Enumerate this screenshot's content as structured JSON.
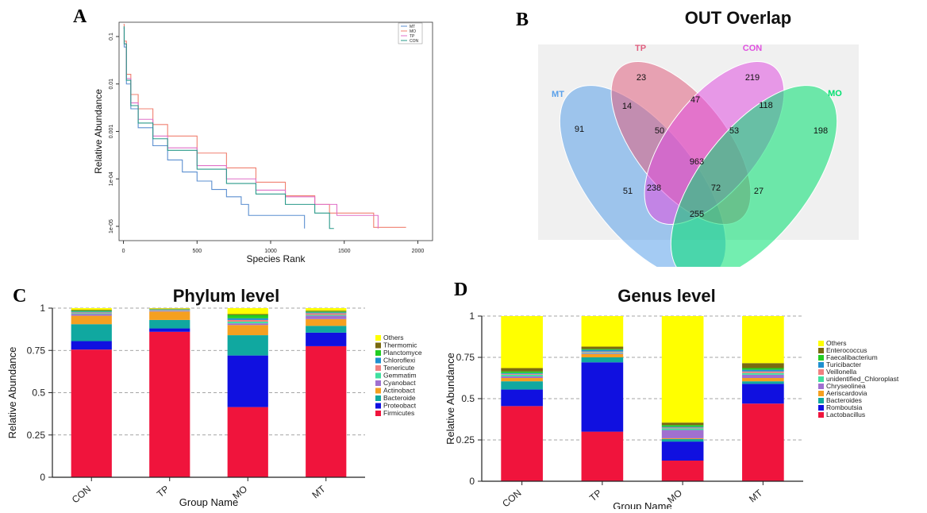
{
  "panel_labels": {
    "a": "A",
    "b": "B",
    "c": "C",
    "d": "D"
  },
  "colors": {
    "MT_curve": "#5b8fd0",
    "MO_curve": "#f08070",
    "TP_curve": "#e070c8",
    "CON_curve": "#2a9a8a",
    "Others": "#ffff00",
    "Thermomicrobia": "#7a6a10",
    "Planctomycetes": "#22cc22",
    "Chloroflexi": "#1e90d0",
    "Tenericutes": "#f08080",
    "Gemmatimonadetes": "#40e0a0",
    "Cyanobacteria": "#a070d0",
    "Actinobacteria": "#f5a020",
    "Bacteroidetes": "#10a8a0",
    "Proteobacteria": "#1010e0",
    "Firmicutes": "#f0143c",
    "Enterococcus": "#7a6a10",
    "Faecalibacterium": "#22cc22",
    "Turicibacter": "#1e90d0",
    "Veillonella": "#f08080",
    "unidentified_Chloroplast": "#40e0a0",
    "Chryseolinea": "#a070d0",
    "Aeriscardovia": "#f5a020",
    "Bacteroides": "#10a8a0",
    "Romboutsia": "#1010e0",
    "Lactobacillus": "#f0143c"
  },
  "chart_data": [
    {
      "id": "A",
      "type": "line",
      "title": "",
      "xlabel": "Species Rank",
      "ylabel": "Relative Abundance",
      "yscale": "log",
      "xlim": [
        -30,
        2100
      ],
      "ylim": [
        5e-06,
        0.2
      ],
      "xticks": [
        0,
        500,
        1000,
        1500,
        2000
      ],
      "xtick_labels": [
        "0",
        "500",
        "1000",
        "1500",
        "2000"
      ],
      "yticks": [
        0.1,
        0.01,
        0.001,
        0.0001,
        1e-05
      ],
      "ytick_labels": [
        "0.1",
        "0.01",
        "0.001",
        "1e-04",
        "1e-05"
      ],
      "legend_position": "top-right",
      "series": [
        {
          "name": "MT",
          "x": [
            1,
            5,
            20,
            50,
            100,
            200,
            300,
            400,
            500,
            600,
            700,
            800,
            850,
            1000,
            1230
          ],
          "y": [
            0.15,
            0.06,
            0.01,
            0.003,
            0.0012,
            0.0005,
            0.00025,
            0.00014,
            9e-05,
            6e-05,
            4.2e-05,
            2.9e-05,
            1.7e-05,
            1.7e-05,
            9e-06
          ]
        },
        {
          "name": "MO",
          "x": [
            1,
            5,
            20,
            50,
            100,
            200,
            300,
            500,
            700,
            900,
            1100,
            1300,
            1400,
            1700,
            1920
          ],
          "y": [
            0.18,
            0.08,
            0.016,
            0.006,
            0.003,
            0.0014,
            0.0008,
            0.00035,
            0.00017,
            8.5e-05,
            4.4e-05,
            2.9e-05,
            1.9e-05,
            9.5e-06,
            9.5e-06
          ]
        },
        {
          "name": "TP",
          "x": [
            1,
            5,
            20,
            50,
            100,
            200,
            300,
            500,
            700,
            900,
            1100,
            1300,
            1450,
            1730
          ],
          "y": [
            0.15,
            0.07,
            0.013,
            0.004,
            0.0018,
            0.0008,
            0.00045,
            0.00019,
            0.0001,
            5.8e-05,
            4.2e-05,
            2.9e-05,
            1.7e-05,
            9e-06
          ]
        },
        {
          "name": "CON",
          "x": [
            1,
            5,
            20,
            50,
            100,
            200,
            300,
            500,
            700,
            900,
            1100,
            1300,
            1400,
            1430
          ],
          "y": [
            0.16,
            0.07,
            0.012,
            0.0035,
            0.0015,
            0.0007,
            0.0004,
            0.00016,
            8e-05,
            4.8e-05,
            2.9e-05,
            1.9e-05,
            9e-06,
            9e-06
          ]
        }
      ]
    },
    {
      "id": "B",
      "type": "venn",
      "title": "OUT Overlap",
      "sets": [
        {
          "name": "MT",
          "color": "#5aa0ea"
        },
        {
          "name": "TP",
          "color": "#e06080"
        },
        {
          "name": "CON",
          "color": "#e050e0"
        },
        {
          "name": "MO",
          "color": "#00e070"
        }
      ],
      "regions": [
        {
          "sets": [
            "MT"
          ],
          "count": 91
        },
        {
          "sets": [
            "TP"
          ],
          "count": 23
        },
        {
          "sets": [
            "CON"
          ],
          "count": 219
        },
        {
          "sets": [
            "MO"
          ],
          "count": 198
        },
        {
          "sets": [
            "MT",
            "TP"
          ],
          "count": 14
        },
        {
          "sets": [
            "TP",
            "CON"
          ],
          "count": 47
        },
        {
          "sets": [
            "CON",
            "MO"
          ],
          "count": 118
        },
        {
          "sets": [
            "MT",
            "TP",
            "CON"
          ],
          "count": 50
        },
        {
          "sets": [
            "TP",
            "CON",
            "MO"
          ],
          "count": 53
        },
        {
          "sets": [
            "MT",
            "TP",
            "CON",
            "MO"
          ],
          "count": 963
        },
        {
          "sets": [
            "MT",
            "CON"
          ],
          "count": 51
        },
        {
          "sets": [
            "MT",
            "CON",
            "MO"
          ],
          "count": 238
        },
        {
          "sets": [
            "MT",
            "TP",
            "MO"
          ],
          "count": 72
        },
        {
          "sets": [
            "TP",
            "MO"
          ],
          "count": 27
        },
        {
          "sets": [
            "MT",
            "MO"
          ],
          "count": 255
        }
      ]
    },
    {
      "id": "C",
      "type": "bar",
      "stacked": true,
      "title": "Phylum level",
      "xlabel": "Group Name",
      "ylabel": "Relative Abundance",
      "ylim": [
        0,
        1
      ],
      "yticks": [
        0,
        0.25,
        0.5,
        0.75,
        1
      ],
      "ytick_labels": [
        "0",
        "0.25",
        "0.5",
        "0.75",
        "1"
      ],
      "categories": [
        "CON",
        "TP",
        "MO",
        "MT"
      ],
      "grid": "dashed horizontal",
      "legend_position": "right",
      "legend_labels": [
        "Others",
        "Thermomic",
        "Planctomyce",
        "Chloroflexi",
        "Tenericute",
        "Gemmatim",
        "Cyanobact",
        "Actinobact",
        "Bacteroide",
        "Proteobact",
        "Firmicutes"
      ],
      "series": [
        {
          "key": "Firmicutes",
          "values": [
            0.755,
            0.86,
            0.415,
            0.775
          ]
        },
        {
          "key": "Proteobacteria",
          "values": [
            0.05,
            0.02,
            0.305,
            0.08
          ]
        },
        {
          "key": "Bacteroidetes",
          "values": [
            0.1,
            0.05,
            0.12,
            0.04
          ]
        },
        {
          "key": "Actinobacteria",
          "values": [
            0.05,
            0.05,
            0.06,
            0.04
          ]
        },
        {
          "key": "Cyanobacteria",
          "values": [
            0.01,
            0.005,
            0.01,
            0.02
          ]
        },
        {
          "key": "Gemmatimonadetes",
          "values": [
            0.005,
            0.003,
            0.01,
            0.005
          ]
        },
        {
          "key": "Tenericutes",
          "values": [
            0.005,
            0.002,
            0.01,
            0.01
          ]
        },
        {
          "key": "Chloroflexi",
          "values": [
            0.005,
            0.002,
            0.01,
            0.005
          ]
        },
        {
          "key": "Planctomycetes",
          "values": [
            0.005,
            0.002,
            0.02,
            0.005
          ]
        },
        {
          "key": "Thermomicrobia",
          "values": [
            0.005,
            0.003,
            0.005,
            0.005
          ]
        },
        {
          "key": "Others",
          "values": [
            0.01,
            0.003,
            0.035,
            0.015
          ]
        }
      ]
    },
    {
      "id": "D",
      "type": "bar",
      "stacked": true,
      "title": "Genus level",
      "xlabel": "Group Name",
      "ylabel": "Relative Abundance",
      "ylim": [
        0,
        1
      ],
      "yticks": [
        0,
        0.25,
        0.5,
        0.75,
        1
      ],
      "ytick_labels": [
        "0",
        "0.25",
        "0.5",
        "0.75",
        "1"
      ],
      "categories": [
        "CON",
        "TP",
        "MO",
        "MT"
      ],
      "grid": "dashed horizontal",
      "legend_position": "right",
      "legend_labels": [
        "Others",
        "Enterococcus",
        "Faecalibacterium",
        "Turicibacter",
        "Veillonella",
        "unidentified_Chloroplast",
        "Chryseolinea",
        "Aeriscardovia",
        "Bacteroides",
        "Romboutsia",
        "Lactobacillus"
      ],
      "series": [
        {
          "key": "Lactobacillus",
          "values": [
            0.455,
            0.3,
            0.125,
            0.47
          ]
        },
        {
          "key": "Romboutsia",
          "values": [
            0.1,
            0.42,
            0.115,
            0.12
          ]
        },
        {
          "key": "Bacteroides",
          "values": [
            0.05,
            0.03,
            0.015,
            0.015
          ]
        },
        {
          "key": "Aeriscardovia",
          "values": [
            0.02,
            0.02,
            0.005,
            0.02
          ]
        },
        {
          "key": "Chryseolinea",
          "values": [
            0.01,
            0.005,
            0.05,
            0.02
          ]
        },
        {
          "key": "unidentified_Chloroplast",
          "values": [
            0.01,
            0.005,
            0.01,
            0.01
          ]
        },
        {
          "key": "Veillonella",
          "values": [
            0.005,
            0.005,
            0.005,
            0.01
          ]
        },
        {
          "key": "Turicibacter",
          "values": [
            0.005,
            0.01,
            0.005,
            0.01
          ]
        },
        {
          "key": "Faecalibacterium",
          "values": [
            0.01,
            0.005,
            0.01,
            0.01
          ]
        },
        {
          "key": "Enterococcus",
          "values": [
            0.02,
            0.015,
            0.015,
            0.03
          ]
        },
        {
          "key": "Others",
          "values": [
            0.315,
            0.185,
            0.645,
            0.285
          ]
        }
      ]
    }
  ]
}
